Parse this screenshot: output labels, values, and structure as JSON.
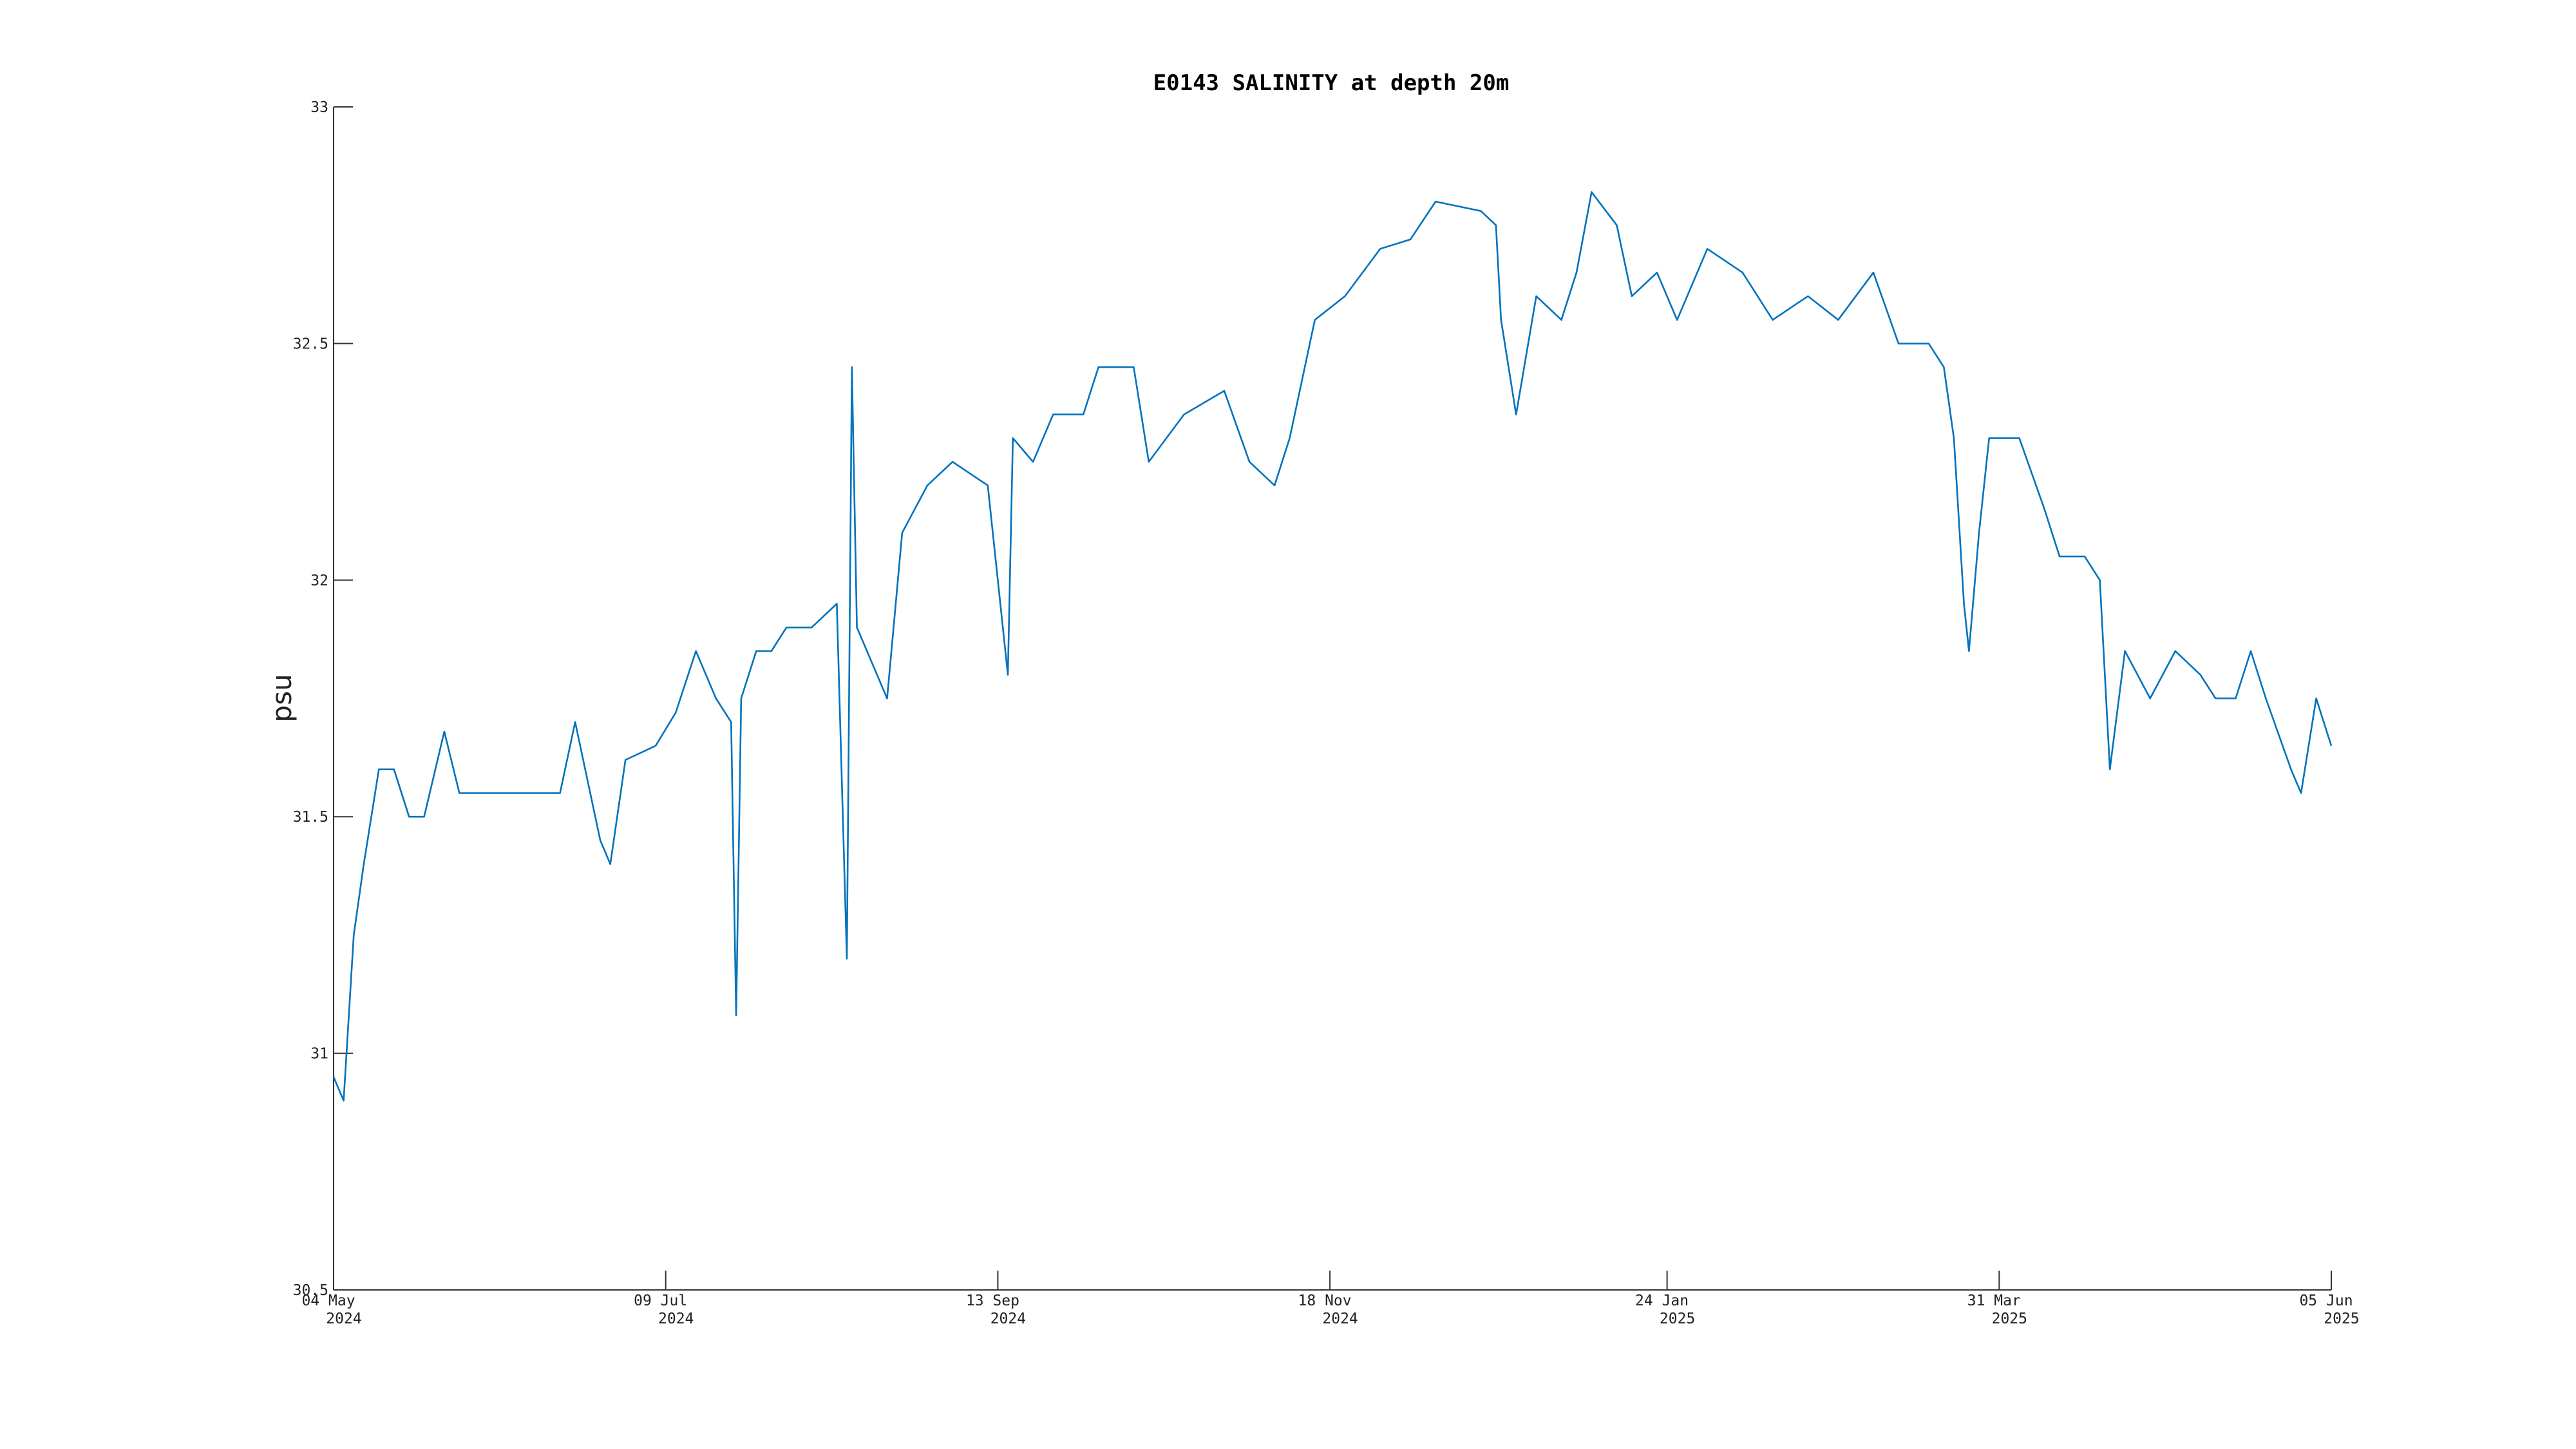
{
  "chart_data": {
    "type": "line",
    "title": "E0143 SALINITY at depth 20m",
    "y_label": "psu",
    "x": [
      "2024-05-04",
      "2024-05-06",
      "2024-05-08",
      "2024-05-10",
      "2024-05-13",
      "2024-05-16",
      "2024-05-19",
      "2024-05-22",
      "2024-05-26",
      "2024-05-29",
      "2024-06-03",
      "2024-06-08",
      "2024-06-13",
      "2024-06-18",
      "2024-06-21",
      "2024-06-26",
      "2024-06-28",
      "2024-07-01",
      "2024-07-07",
      "2024-07-11",
      "2024-07-15",
      "2024-07-19",
      "2024-07-22",
      "2024-07-23",
      "2024-07-24",
      "2024-07-27",
      "2024-07-30",
      "2024-08-02",
      "2024-08-07",
      "2024-08-12",
      "2024-08-14",
      "2024-08-15",
      "2024-08-16",
      "2024-08-22",
      "2024-08-25",
      "2024-08-30",
      "2024-09-04",
      "2024-09-11",
      "2024-09-15",
      "2024-09-16",
      "2024-09-20",
      "2024-09-24",
      "2024-09-30",
      "2024-10-03",
      "2024-10-10",
      "2024-10-13",
      "2024-10-20",
      "2024-10-28",
      "2024-11-02",
      "2024-11-07",
      "2024-11-10",
      "2024-11-15",
      "2024-11-21",
      "2024-11-28",
      "2024-12-04",
      "2024-12-09",
      "2024-12-18",
      "2024-12-21",
      "2024-12-22",
      "2024-12-25",
      "2024-12-29",
      "2025-01-03",
      "2025-01-06",
      "2025-01-09",
      "2025-01-14",
      "2025-01-17",
      "2025-01-22",
      "2025-01-26",
      "2025-02-01",
      "2025-02-08",
      "2025-02-14",
      "2025-02-21",
      "2025-02-27",
      "2025-03-06",
      "2025-03-11",
      "2025-03-17",
      "2025-03-20",
      "2025-03-22",
      "2025-03-24",
      "2025-03-25",
      "2025-03-27",
      "2025-03-29",
      "2025-04-04",
      "2025-04-09",
      "2025-04-12",
      "2025-04-17",
      "2025-04-20",
      "2025-04-22",
      "2025-04-25",
      "2025-04-30",
      "2025-05-05",
      "2025-05-10",
      "2025-05-13",
      "2025-05-17",
      "2025-05-20",
      "2025-05-23",
      "2025-05-28",
      "2025-05-30",
      "2025-06-02",
      "2025-06-05"
    ],
    "series": [
      {
        "name": "salinity",
        "color": "#0072bd",
        "values": [
          30.95,
          30.9,
          31.25,
          31.4,
          31.6,
          31.6,
          31.5,
          31.5,
          31.68,
          31.55,
          31.55,
          31.55,
          31.55,
          31.55,
          31.7,
          31.45,
          31.4,
          31.62,
          31.65,
          31.72,
          31.85,
          31.75,
          31.7,
          31.08,
          31.75,
          31.85,
          31.85,
          31.9,
          31.9,
          31.95,
          31.2,
          32.45,
          31.9,
          31.75,
          32.1,
          32.2,
          32.25,
          32.2,
          31.8,
          32.3,
          32.25,
          32.35,
          32.35,
          32.45,
          32.45,
          32.25,
          32.35,
          32.4,
          32.25,
          32.2,
          32.3,
          32.55,
          32.6,
          32.7,
          32.72,
          32.8,
          32.78,
          32.75,
          32.55,
          32.35,
          32.6,
          32.55,
          32.65,
          32.82,
          32.75,
          32.6,
          32.65,
          32.55,
          32.7,
          32.65,
          32.55,
          32.6,
          32.55,
          32.65,
          32.5,
          32.5,
          32.45,
          32.3,
          31.95,
          31.85,
          32.1,
          32.3,
          32.3,
          32.15,
          32.05,
          32.05,
          32.0,
          31.6,
          31.85,
          31.75,
          31.85,
          31.8,
          31.75,
          31.75,
          31.85,
          31.75,
          31.6,
          31.55,
          31.75,
          31.65
        ]
      }
    ],
    "xlim": [
      "2024-05-04",
      "2025-06-05"
    ],
    "xticks": [
      {
        "value": "2024-05-04",
        "label": [
          "04 May",
          "2024"
        ]
      },
      {
        "value": "2024-07-09",
        "label": [
          "09 Jul",
          "2024"
        ]
      },
      {
        "value": "2024-09-13",
        "label": [
          "13 Sep",
          "2024"
        ]
      },
      {
        "value": "2024-11-18",
        "label": [
          "18 Nov",
          "2024"
        ]
      },
      {
        "value": "2025-01-24",
        "label": [
          "24 Jan",
          "2025"
        ]
      },
      {
        "value": "2025-03-31",
        "label": [
          "31 Mar",
          "2025"
        ]
      },
      {
        "value": "2025-06-05",
        "label": [
          "05 Jun",
          "2025"
        ]
      }
    ],
    "ylim": [
      30.5,
      33
    ],
    "yticks": [
      30.5,
      31,
      31.5,
      32,
      32.5,
      33
    ],
    "grid": false
  }
}
